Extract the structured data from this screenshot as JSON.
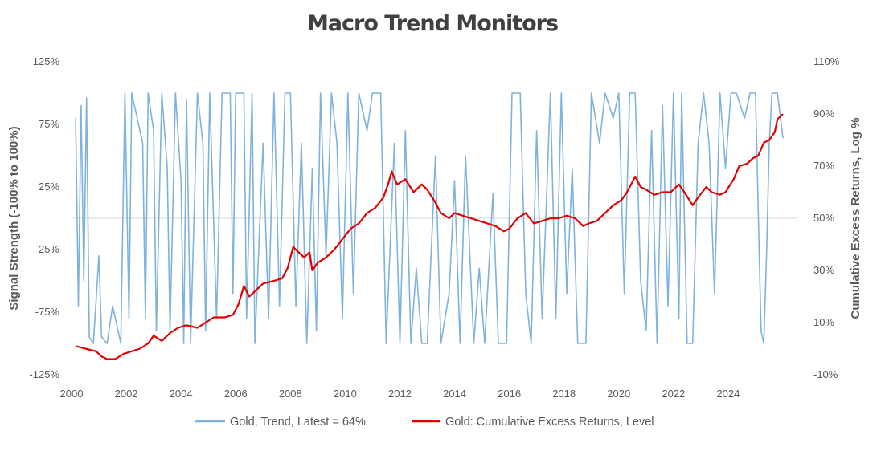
{
  "chart_data": {
    "type": "line",
    "title": "Macro Trend Monitors",
    "left_axis": {
      "label": "Signal Strength (-100% to 100%)",
      "range": [
        -125,
        125
      ],
      "ticks": [
        125,
        75,
        25,
        -25,
        -75,
        -125
      ],
      "tick_labels": [
        "125%",
        "75%",
        "25%",
        "-25%",
        "-75%",
        "-125%"
      ]
    },
    "right_axis": {
      "label": "Cumulative Excess Returns, Log %",
      "range": [
        -10,
        110
      ],
      "ticks": [
        110,
        90,
        70,
        50,
        30,
        10,
        -10
      ],
      "tick_labels": [
        "110%",
        "90%",
        "70%",
        "50%",
        "30%",
        "10%",
        "-10%"
      ]
    },
    "x_axis": {
      "range": [
        2000,
        2026.5
      ],
      "ticks": [
        2000,
        2002,
        2004,
        2006,
        2008,
        2010,
        2012,
        2014,
        2016,
        2018,
        2020,
        2022,
        2024
      ],
      "tick_labels": [
        "2000",
        "2002",
        "2004",
        "2006",
        "2008",
        "2010",
        "2012",
        "2014",
        "2016",
        "2018",
        "2020",
        "2022",
        "2024"
      ]
    },
    "legend": {
      "placement": "bottom"
    },
    "series": [
      {
        "name": "Gold, Trend, Latest = 64%",
        "axis": "left",
        "color": "#7fb2dc",
        "points": [
          [
            2000.15,
            80
          ],
          [
            2000.25,
            -70
          ],
          [
            2000.35,
            90
          ],
          [
            2000.45,
            -50
          ],
          [
            2000.55,
            96
          ],
          [
            2000.65,
            -95
          ],
          [
            2000.8,
            -100
          ],
          [
            2001.0,
            -30
          ],
          [
            2001.1,
            -95
          ],
          [
            2001.3,
            -100
          ],
          [
            2001.5,
            -70
          ],
          [
            2001.8,
            -100
          ],
          [
            2001.95,
            100
          ],
          [
            2002.1,
            -80
          ],
          [
            2002.2,
            100
          ],
          [
            2002.6,
            60
          ],
          [
            2002.7,
            -80
          ],
          [
            2002.8,
            100
          ],
          [
            2003.0,
            70
          ],
          [
            2003.1,
            -90
          ],
          [
            2003.3,
            100
          ],
          [
            2003.5,
            40
          ],
          [
            2003.6,
            -90
          ],
          [
            2003.8,
            100
          ],
          [
            2004.0,
            30
          ],
          [
            2004.1,
            -100
          ],
          [
            2004.2,
            95
          ],
          [
            2004.35,
            -100
          ],
          [
            2004.6,
            100
          ],
          [
            2004.8,
            60
          ],
          [
            2004.9,
            -90
          ],
          [
            2005.05,
            100
          ],
          [
            2005.3,
            -80
          ],
          [
            2005.5,
            100
          ],
          [
            2005.8,
            100
          ],
          [
            2005.9,
            -60
          ],
          [
            2006.0,
            100
          ],
          [
            2006.3,
            100
          ],
          [
            2006.4,
            -80
          ],
          [
            2006.6,
            100
          ],
          [
            2006.7,
            -100
          ],
          [
            2007.0,
            60
          ],
          [
            2007.2,
            -80
          ],
          [
            2007.4,
            100
          ],
          [
            2007.6,
            -70
          ],
          [
            2007.8,
            100
          ],
          [
            2008.0,
            100
          ],
          [
            2008.2,
            -70
          ],
          [
            2008.4,
            60
          ],
          [
            2008.6,
            -100
          ],
          [
            2008.8,
            40
          ],
          [
            2008.95,
            -90
          ],
          [
            2009.1,
            100
          ],
          [
            2009.3,
            -30
          ],
          [
            2009.5,
            100
          ],
          [
            2009.7,
            60
          ],
          [
            2009.9,
            -80
          ],
          [
            2010.1,
            100
          ],
          [
            2010.3,
            -60
          ],
          [
            2010.5,
            100
          ],
          [
            2010.8,
            70
          ],
          [
            2011.0,
            100
          ],
          [
            2011.3,
            100
          ],
          [
            2011.5,
            -100
          ],
          [
            2011.8,
            60
          ],
          [
            2012.0,
            -100
          ],
          [
            2012.2,
            70
          ],
          [
            2012.4,
            -100
          ],
          [
            2012.6,
            -40
          ],
          [
            2012.8,
            -100
          ],
          [
            2013.0,
            -100
          ],
          [
            2013.3,
            50
          ],
          [
            2013.5,
            -100
          ],
          [
            2013.8,
            -60
          ],
          [
            2014.0,
            30
          ],
          [
            2014.2,
            -100
          ],
          [
            2014.4,
            50
          ],
          [
            2014.7,
            -100
          ],
          [
            2014.9,
            -40
          ],
          [
            2015.1,
            -100
          ],
          [
            2015.4,
            20
          ],
          [
            2015.6,
            -100
          ],
          [
            2015.9,
            -100
          ],
          [
            2016.1,
            100
          ],
          [
            2016.4,
            100
          ],
          [
            2016.6,
            -60
          ],
          [
            2016.8,
            -100
          ],
          [
            2017.0,
            70
          ],
          [
            2017.2,
            -80
          ],
          [
            2017.5,
            100
          ],
          [
            2017.7,
            -80
          ],
          [
            2017.9,
            100
          ],
          [
            2018.1,
            -60
          ],
          [
            2018.3,
            40
          ],
          [
            2018.5,
            -100
          ],
          [
            2018.8,
            -100
          ],
          [
            2019.0,
            100
          ],
          [
            2019.3,
            60
          ],
          [
            2019.5,
            100
          ],
          [
            2019.8,
            80
          ],
          [
            2020.0,
            100
          ],
          [
            2020.2,
            -60
          ],
          [
            2020.4,
            100
          ],
          [
            2020.6,
            100
          ],
          [
            2020.8,
            -50
          ],
          [
            2021.0,
            -90
          ],
          [
            2021.2,
            70
          ],
          [
            2021.4,
            -100
          ],
          [
            2021.6,
            90
          ],
          [
            2021.8,
            -70
          ],
          [
            2022.0,
            100
          ],
          [
            2022.2,
            -80
          ],
          [
            2022.3,
            100
          ],
          [
            2022.5,
            -100
          ],
          [
            2022.7,
            -100
          ],
          [
            2022.9,
            60
          ],
          [
            2023.1,
            100
          ],
          [
            2023.3,
            60
          ],
          [
            2023.5,
            -60
          ],
          [
            2023.7,
            100
          ],
          [
            2023.9,
            40
          ],
          [
            2024.1,
            100
          ],
          [
            2024.3,
            100
          ],
          [
            2024.6,
            80
          ],
          [
            2024.8,
            100
          ],
          [
            2025.0,
            100
          ],
          [
            2025.2,
            -90
          ],
          [
            2025.3,
            -100
          ],
          [
            2025.4,
            -30
          ],
          [
            2025.5,
            60
          ],
          [
            2025.6,
            100
          ],
          [
            2025.8,
            100
          ],
          [
            2026.0,
            64
          ]
        ]
      },
      {
        "name": "Gold: Cumulative Excess Returns, Level",
        "axis": "right",
        "color": "#e00000",
        "points": [
          [
            2000.15,
            1
          ],
          [
            2000.5,
            0
          ],
          [
            2000.9,
            -1
          ],
          [
            2001.1,
            -3
          ],
          [
            2001.3,
            -4
          ],
          [
            2001.6,
            -4
          ],
          [
            2001.9,
            -2
          ],
          [
            2002.2,
            -1
          ],
          [
            2002.5,
            0
          ],
          [
            2002.8,
            2
          ],
          [
            2003.0,
            5
          ],
          [
            2003.3,
            3
          ],
          [
            2003.6,
            6
          ],
          [
            2003.9,
            8
          ],
          [
            2004.2,
            9
          ],
          [
            2004.6,
            8
          ],
          [
            2004.9,
            10
          ],
          [
            2005.2,
            12
          ],
          [
            2005.6,
            12
          ],
          [
            2005.9,
            13
          ],
          [
            2006.1,
            17
          ],
          [
            2006.3,
            24
          ],
          [
            2006.5,
            20
          ],
          [
            2006.8,
            23
          ],
          [
            2007.0,
            25
          ],
          [
            2007.4,
            26
          ],
          [
            2007.7,
            27
          ],
          [
            2007.9,
            31
          ],
          [
            2008.1,
            39
          ],
          [
            2008.3,
            37
          ],
          [
            2008.5,
            35
          ],
          [
            2008.7,
            37
          ],
          [
            2008.8,
            30
          ],
          [
            2009.0,
            33
          ],
          [
            2009.3,
            35
          ],
          [
            2009.6,
            38
          ],
          [
            2009.9,
            42
          ],
          [
            2010.2,
            46
          ],
          [
            2010.5,
            48
          ],
          [
            2010.8,
            52
          ],
          [
            2011.1,
            54
          ],
          [
            2011.4,
            58
          ],
          [
            2011.6,
            64
          ],
          [
            2011.7,
            68
          ],
          [
            2011.9,
            63
          ],
          [
            2012.2,
            65
          ],
          [
            2012.5,
            60
          ],
          [
            2012.8,
            63
          ],
          [
            2013.0,
            61
          ],
          [
            2013.3,
            56
          ],
          [
            2013.5,
            52
          ],
          [
            2013.8,
            50
          ],
          [
            2014.0,
            52
          ],
          [
            2014.3,
            51
          ],
          [
            2014.6,
            50
          ],
          [
            2014.9,
            49
          ],
          [
            2015.2,
            48
          ],
          [
            2015.5,
            47
          ],
          [
            2015.8,
            45
          ],
          [
            2016.0,
            46
          ],
          [
            2016.3,
            50
          ],
          [
            2016.6,
            52
          ],
          [
            2016.9,
            48
          ],
          [
            2017.2,
            49
          ],
          [
            2017.5,
            50
          ],
          [
            2017.8,
            50
          ],
          [
            2018.1,
            51
          ],
          [
            2018.4,
            50
          ],
          [
            2018.7,
            47
          ],
          [
            2018.9,
            48
          ],
          [
            2019.2,
            49
          ],
          [
            2019.5,
            52
          ],
          [
            2019.8,
            55
          ],
          [
            2020.1,
            57
          ],
          [
            2020.3,
            60
          ],
          [
            2020.6,
            66
          ],
          [
            2020.8,
            62
          ],
          [
            2021.0,
            61
          ],
          [
            2021.3,
            59
          ],
          [
            2021.6,
            60
          ],
          [
            2021.9,
            60
          ],
          [
            2022.2,
            63
          ],
          [
            2022.4,
            60
          ],
          [
            2022.7,
            55
          ],
          [
            2022.9,
            58
          ],
          [
            2023.2,
            62
          ],
          [
            2023.4,
            60
          ],
          [
            2023.7,
            59
          ],
          [
            2023.9,
            60
          ],
          [
            2024.2,
            65
          ],
          [
            2024.4,
            70
          ],
          [
            2024.7,
            71
          ],
          [
            2024.9,
            73
          ],
          [
            2025.1,
            74
          ],
          [
            2025.3,
            79
          ],
          [
            2025.5,
            80
          ],
          [
            2025.7,
            83
          ],
          [
            2025.8,
            88
          ],
          [
            2026.0,
            90
          ]
        ]
      }
    ]
  }
}
